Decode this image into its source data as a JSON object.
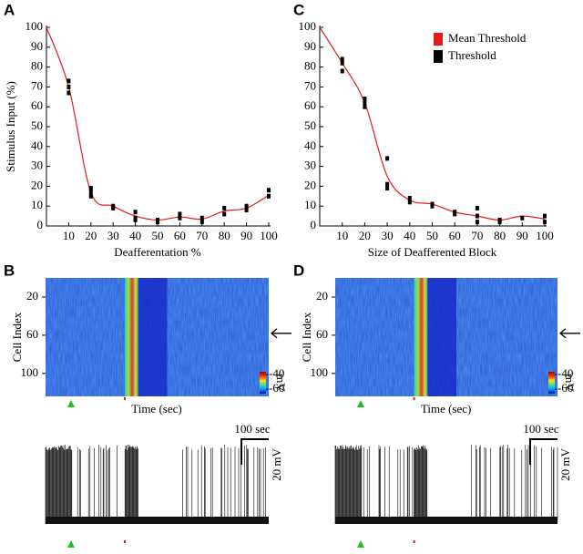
{
  "chart_data": [
    {
      "type": "line",
      "title": "A",
      "xlabel": "Deafferentation %",
      "ylabel": "Stimulus Input (%)",
      "xlim": [
        0,
        100
      ],
      "xticks": [
        10,
        20,
        30,
        40,
        50,
        60,
        70,
        80,
        90,
        100
      ],
      "ylim": [
        0,
        100
      ],
      "yticks": [
        0,
        10,
        20,
        30,
        40,
        50,
        60,
        70,
        80,
        90,
        100
      ],
      "series": [
        {
          "type": "line",
          "color": "#e41a1c",
          "x": [
            0,
            10,
            20,
            30,
            40,
            50,
            60,
            70,
            80,
            90,
            100
          ],
          "values": [
            100,
            70,
            17,
            10,
            5,
            3,
            4.5,
            3.5,
            7.5,
            9,
            15.5
          ]
        },
        {
          "type": "scatter",
          "color": "#000000",
          "x": [
            10,
            10,
            10,
            20,
            20,
            20,
            30,
            30,
            40,
            40,
            40,
            50,
            50,
            60,
            60,
            70,
            70,
            80,
            80,
            90,
            90,
            100,
            100
          ],
          "values": [
            73,
            67,
            70,
            19,
            15,
            17,
            10,
            9,
            7,
            4,
            3,
            3,
            2,
            6,
            4,
            4,
            2,
            9,
            6,
            10,
            8,
            18,
            15
          ]
        }
      ]
    },
    {
      "type": "line",
      "title": "C",
      "xlabel": "Size of Deafferented Block",
      "xlim": [
        0,
        100
      ],
      "xticks": [
        10,
        20,
        30,
        40,
        50,
        60,
        70,
        80,
        90,
        100
      ],
      "ylim": [
        0,
        100
      ],
      "yticks": [
        0,
        10,
        20,
        30,
        40,
        50,
        60,
        70,
        80,
        90,
        100
      ],
      "series": [
        {
          "type": "line",
          "name": "Mean Threshold",
          "color": "#e41a1c",
          "x": [
            0,
            10,
            20,
            30,
            40,
            50,
            60,
            70,
            80,
            90,
            100
          ],
          "values": [
            100,
            82,
            62,
            25,
            13,
            11,
            7,
            5,
            3,
            5,
            3.5
          ]
        },
        {
          "type": "scatter",
          "name": "Threshold",
          "color": "#000000",
          "x": [
            10,
            10,
            10,
            20,
            20,
            20,
            30,
            30,
            30,
            40,
            40,
            50,
            50,
            60,
            60,
            70,
            70,
            70,
            80,
            80,
            90,
            100,
            100
          ],
          "values": [
            84,
            78,
            82,
            64,
            60,
            62,
            34,
            21,
            19,
            14,
            12,
            11,
            10,
            7,
            6,
            9,
            2,
            5,
            3,
            2,
            4,
            5,
            2
          ]
        }
      ]
    },
    {
      "type": "heatmap",
      "title": "B",
      "ylabel": "Cell Index",
      "xlabel": "Time (sec)",
      "ylim": [
        0,
        124
      ],
      "yticks": [
        20,
        60,
        100
      ],
      "colorbar": {
        "clim": [
          -66,
          -36
        ],
        "ticks": [
          -40,
          -60
        ],
        "label": "mV"
      },
      "scalebar": {
        "time": "100 sec",
        "voltage": "20 mV"
      }
    },
    {
      "type": "heatmap",
      "title": "D",
      "ylabel": "Cell Index",
      "xlabel": "Time (sec)",
      "ylim": [
        0,
        124
      ],
      "yticks": [
        20,
        60,
        100
      ],
      "colorbar": {
        "clim": [
          -66,
          -36
        ],
        "ticks": [
          -40,
          -60
        ],
        "label": "mV"
      },
      "scalebar": {
        "time": "100 sec",
        "voltage": "20 mV"
      }
    }
  ]
}
